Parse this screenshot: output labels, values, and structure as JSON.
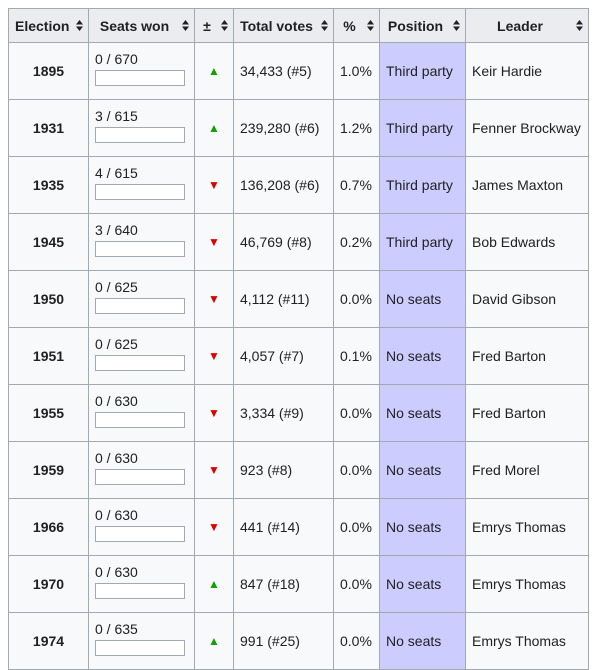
{
  "table": {
    "header": [
      "Election",
      "Seats won",
      "±",
      "Total votes",
      "%",
      "Position",
      "Leader"
    ],
    "rows": [
      [
        "1895",
        "0 / 670",
        "▲",
        "34,433 (#5)",
        "1.0%",
        "Third party",
        "Keir Hardie"
      ],
      [
        "1931",
        "3 / 615",
        "▲",
        "239,280 (#6)",
        "1.2%",
        "Third party",
        "Fenner Brockway"
      ],
      [
        "1935",
        "4 / 615",
        "▼",
        "136,208 (#6)",
        "0.7%",
        "Third party",
        "James Maxton"
      ],
      [
        "1945",
        "3 / 640",
        "▼",
        "46,769 (#8)",
        "0.2%",
        "Third party",
        "Bob Edwards"
      ],
      [
        "1950",
        "0 / 625",
        "▼",
        "4,112 (#11)",
        "0.0%",
        "No seats",
        "David Gibson"
      ],
      [
        "1951",
        "0 / 625",
        "▼",
        "4,057 (#7)",
        "0.1%",
        "No seats",
        "Fred Barton"
      ],
      [
        "1955",
        "0 / 630",
        "▼",
        "3,334 (#9)",
        "0.0%",
        "No seats",
        "Fred Barton"
      ],
      [
        "1959",
        "0 / 630",
        "▼",
        "923 (#8)",
        "0.0%",
        "No seats",
        "Fred Morel"
      ],
      [
        "1966",
        "0 / 630",
        "▼",
        "441 (#14)",
        "0.0%",
        "No seats",
        "Emrys Thomas"
      ],
      [
        "1970",
        "0 / 630",
        "▲",
        "847 (#18)",
        "0.0%",
        "No seats",
        "Emrys Thomas"
      ],
      [
        "1974",
        "0 / 635",
        "▲",
        "991 (#25)",
        "0.0%",
        "No seats",
        "Emrys Thomas"
      ]
    ]
  }
}
